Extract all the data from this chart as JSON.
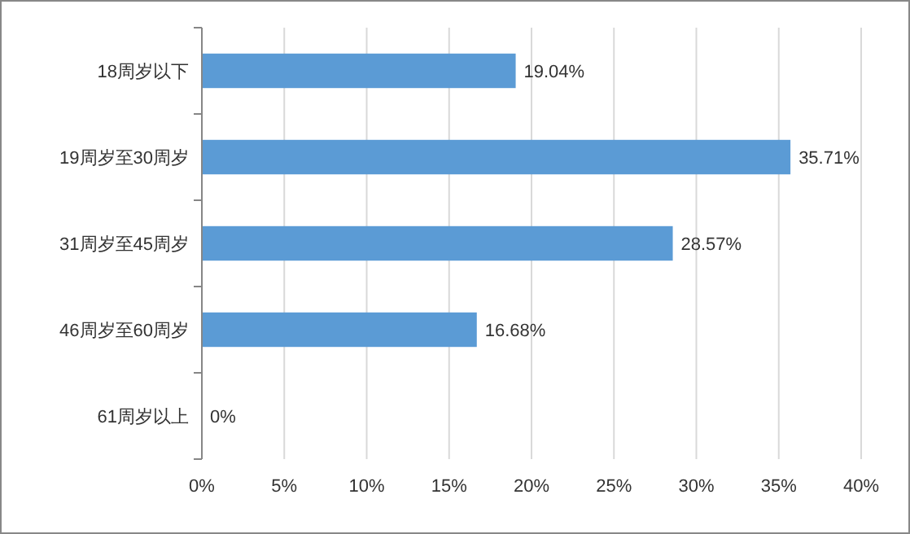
{
  "chart_data": {
    "type": "bar",
    "orientation": "horizontal",
    "categories": [
      "18周岁以下",
      "19周岁至30周岁",
      "31周岁至45周岁",
      "46周岁至60周岁",
      "61周岁以上"
    ],
    "values": [
      19.04,
      35.71,
      28.57,
      16.68,
      0
    ],
    "value_labels": [
      "19.04%",
      "35.71%",
      "28.57%",
      "16.68%",
      "0%"
    ],
    "color": "#5b9bd5",
    "xlim": [
      0,
      40
    ],
    "xticks": [
      {
        "value": 0,
        "label": "0%"
      },
      {
        "value": 5,
        "label": "5%"
      },
      {
        "value": 10,
        "label": "10%"
      },
      {
        "value": 15,
        "label": "15%"
      },
      {
        "value": 20,
        "label": "20%"
      },
      {
        "value": 25,
        "label": "25%"
      },
      {
        "value": 30,
        "label": "30%"
      },
      {
        "value": 35,
        "label": "35%"
      },
      {
        "value": 40,
        "label": "40%"
      }
    ],
    "grid": "x"
  }
}
